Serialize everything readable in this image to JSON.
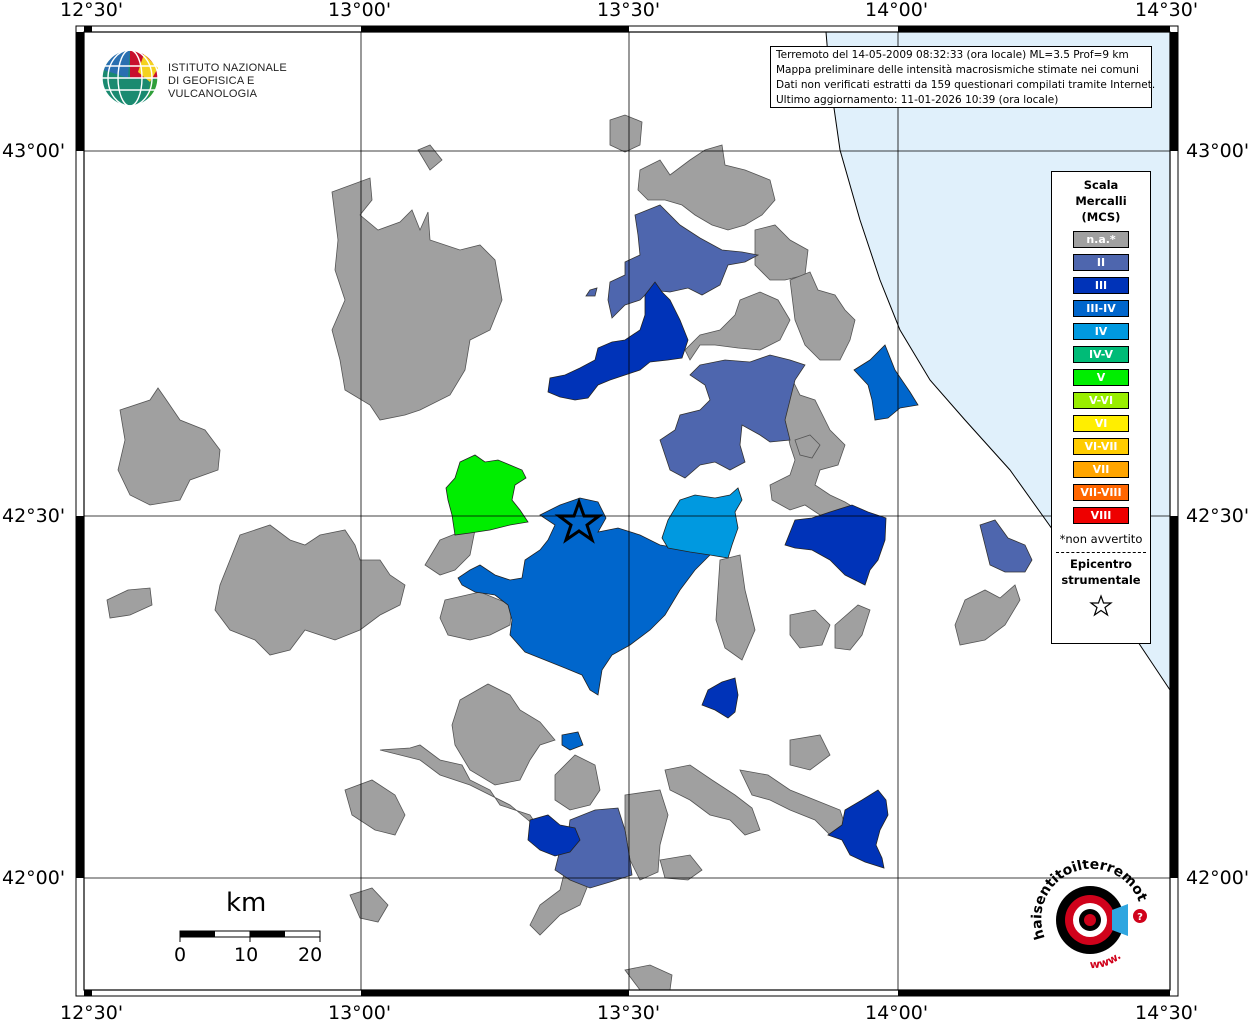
{
  "header": {
    "line1": "Terremoto del 14-05-2009 08:32:33 (ora locale) ML=3.5 Prof=9 km",
    "line2": "Mappa preliminare delle intensità macrosismiche stimate nei comuni",
    "line3": "Dati non verificati estratti da 159 questionari compilati tramite Internet.",
    "line4": "Ultimo aggiornamento: 11-01-2026 10:39 (ora locale)"
  },
  "logo": {
    "line1": "ISTITUTO NAZIONALE",
    "line2": "DI GEOFISICA E VULCANOLOGIA",
    "site": "haisentitoilterremoto.it",
    "site_prefix": "www."
  },
  "axes": {
    "top": [
      "12°30'",
      "13°00'",
      "13°30'",
      "14°00'",
      "14°30'"
    ],
    "bottom": [
      "12°30'",
      "13°00'",
      "13°30'",
      "14°00'",
      "14°30'"
    ],
    "left": [
      "43°00'",
      "42°30'",
      "42°00'"
    ],
    "right": [
      "43°00'",
      "42°30'",
      "42°00'"
    ]
  },
  "legend": {
    "title1": "Scala",
    "title2": "Mercalli",
    "title3": "(MCS)",
    "items": [
      {
        "label": "n.a.*",
        "color": "#a0a0a0"
      },
      {
        "label": "II",
        "color": "#4e66ae"
      },
      {
        "label": "III",
        "color": "#0033b8"
      },
      {
        "label": "III-IV",
        "color": "#0066cc"
      },
      {
        "label": "IV",
        "color": "#0099e0"
      },
      {
        "label": "IV-V",
        "color": "#00bb77"
      },
      {
        "label": "V",
        "color": "#00ee00"
      },
      {
        "label": "V-VI",
        "color": "#99ee00"
      },
      {
        "label": "VI",
        "color": "#ffee00"
      },
      {
        "label": "VI-VII",
        "color": "#ffcc00"
      },
      {
        "label": "VII",
        "color": "#ffa500"
      },
      {
        "label": "VII-VIII",
        "color": "#ff6600"
      },
      {
        "label": "VIII",
        "color": "#ee0000"
      }
    ],
    "note": "*non avvertito",
    "epi1": "Epicentro",
    "epi2": "strumentale"
  },
  "scalebar": {
    "unit": "km",
    "labels": [
      "0",
      "10",
      "20"
    ]
  },
  "colors": {
    "sea": "#e0f0fb",
    "na": "#a0a0a0",
    "ii": "#4e66ae",
    "iii": "#0033b8",
    "iii_iv": "#0066cc",
    "iv": "#0099e0",
    "v": "#00ee00"
  }
}
